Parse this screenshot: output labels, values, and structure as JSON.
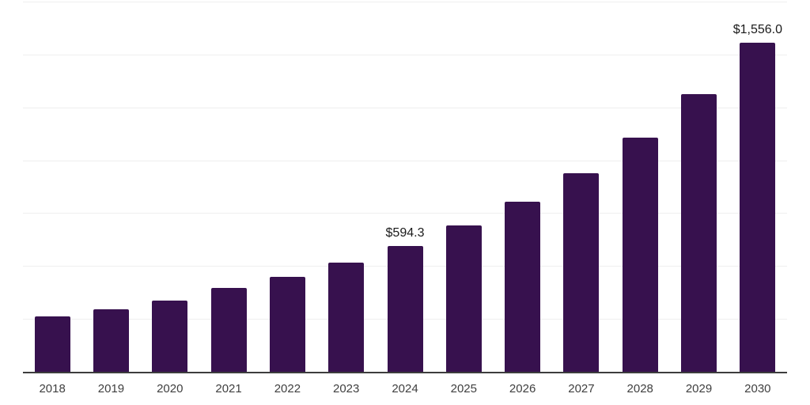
{
  "chart_data": {
    "type": "bar",
    "categories": [
      "2018",
      "2019",
      "2020",
      "2021",
      "2022",
      "2023",
      "2024",
      "2025",
      "2026",
      "2027",
      "2028",
      "2029",
      "2030"
    ],
    "values": [
      260,
      295,
      336,
      398,
      450,
      517,
      594.3,
      690,
      804,
      938,
      1106,
      1311,
      1556
    ],
    "annotations": [
      {
        "category": "2024",
        "text": "$594.3"
      },
      {
        "category": "2030",
        "text": "$1,556.0"
      }
    ],
    "xlabel": "",
    "ylabel": "",
    "ylim": [
      0,
      1750
    ],
    "gridline_step": 250,
    "grid": true,
    "legend": false,
    "y_axis_ticks_visible": false
  },
  "colors": {
    "bar": "#37114E",
    "gridline": "#efefef",
    "axis_line": "#3d3d3d",
    "tick_label": "#3f3f3f",
    "data_label": "#1a1a1a",
    "background": "#ffffff"
  }
}
